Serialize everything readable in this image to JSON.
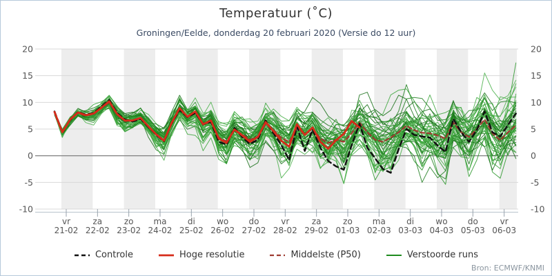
{
  "header": {
    "title": "Temperatuur (˚C)",
    "subtitle": "Groningen/Eelde, donderdag 20 februari 2020 (Versie do 12 uur)"
  },
  "footer": {
    "source": "Bron: ECMWF/KNMI"
  },
  "legend": [
    {
      "label": "Controle",
      "color": "#111111",
      "dash": "6 4",
      "width": 2.6
    },
    {
      "label": "Hoge resolutie",
      "color": "#d62b1a",
      "dash": "",
      "width": 2.8
    },
    {
      "label": "Middelste (P50)",
      "color": "#9e3a30",
      "dash": "6 4",
      "width": 2.2
    },
    {
      "label": "Verstoorde runs",
      "color": "#1e8a1e",
      "dash": "",
      "width": 2.0
    }
  ],
  "colors": {
    "band": "#ededed",
    "grid": "#d8d8d8",
    "zero_line": "#888888",
    "axis_line": "#b8c2cc",
    "tick": "#98a2ac",
    "axis_text": "#555555",
    "border": "#b6c8da"
  },
  "chart_data": {
    "type": "line",
    "title": "Temperatuur (˚C)",
    "subtitle": "Groningen/Eelde, donderdag 20 februari 2020 (Versie do 12 uur)",
    "ylabel": "",
    "xlabel": "",
    "ylim": [
      -10,
      20
    ],
    "yticks": [
      20,
      15,
      10,
      5,
      0,
      -5,
      -10
    ],
    "grid": "horizontal",
    "legend_position": "bottom",
    "x_days": [
      {
        "day": "vr",
        "date": "21-02"
      },
      {
        "day": "za",
        "date": "22-02"
      },
      {
        "day": "zo",
        "date": "23-02"
      },
      {
        "day": "ma",
        "date": "24-02"
      },
      {
        "day": "di",
        "date": "25-02"
      },
      {
        "day": "wo",
        "date": "26-02"
      },
      {
        "day": "do",
        "date": "27-02"
      },
      {
        "day": "vr",
        "date": "28-02"
      },
      {
        "day": "za",
        "date": "29-02"
      },
      {
        "day": "zo",
        "date": "01-03"
      },
      {
        "day": "ma",
        "date": "02-03"
      },
      {
        "day": "di",
        "date": "03-03"
      },
      {
        "day": "wo",
        "date": "04-03"
      },
      {
        "day": "do",
        "date": "05-03"
      },
      {
        "day": "vr",
        "date": "06-03"
      }
    ],
    "time_step_days": 0.25,
    "series": [
      {
        "name": "Controle",
        "color": "#111111",
        "dash": "7 5",
        "width": 2.5,
        "values": [
          8.3,
          4.5,
          6.7,
          8.2,
          7.7,
          8.0,
          9.2,
          10.4,
          8.0,
          6.8,
          6.4,
          6.9,
          5.4,
          3.9,
          2.7,
          6.1,
          8.6,
          7.2,
          8.0,
          5.9,
          6.3,
          2.6,
          2.1,
          5.2,
          3.5,
          2.2,
          3.0,
          6.6,
          4.2,
          2.0,
          -0.8,
          5.5,
          0.9,
          4.9,
          1.5,
          -1.0,
          -2.0,
          -2.6,
          2.0,
          6.0,
          1.5,
          -0.5,
          -2.5,
          -3.2,
          1.2,
          5.0,
          3.9,
          3.6,
          3.4,
          1.9,
          0.7,
          6.9,
          4.4,
          2.6,
          4.8,
          8.3,
          4.4,
          3.6,
          5.8,
          7.9
        ]
      },
      {
        "name": "Hoge resolutie",
        "color": "#d62b1a",
        "dash": "",
        "width": 2.8,
        "values": [
          8.2,
          4.4,
          6.8,
          8.1,
          7.6,
          7.9,
          9.0,
          10.2,
          7.8,
          6.6,
          6.6,
          7.1,
          5.5,
          4.0,
          2.8,
          6.2,
          8.9,
          7.3,
          8.3,
          5.9,
          6.6,
          3.2,
          2.4,
          4.9,
          3.8,
          2.6,
          3.5,
          6.3,
          4.6,
          2.8,
          1.7,
          5.9,
          3.9,
          5.3,
          2.6,
          1.3,
          2.9,
          4.1,
          6.5,
          5.3
        ]
      },
      {
        "name": "Middelste (P50)",
        "color": "#9e3a30",
        "dash": "6 4",
        "width": 2.2,
        "values": [
          8.1,
          4.5,
          6.7,
          8.0,
          7.5,
          7.8,
          8.9,
          10.0,
          7.7,
          6.5,
          6.5,
          7.0,
          5.4,
          3.9,
          2.9,
          6.0,
          8.7,
          7.2,
          8.1,
          5.8,
          6.4,
          3.4,
          2.7,
          4.8,
          4.0,
          3.0,
          3.6,
          6.0,
          4.8,
          3.4,
          2.6,
          5.2,
          4.0,
          5.0,
          3.2,
          2.4,
          3.0,
          2.6,
          4.2,
          6.2,
          4.4,
          3.0,
          2.6,
          3.4,
          4.4,
          5.6,
          4.8,
          4.3,
          4.2,
          3.8,
          3.2,
          6.2,
          4.4,
          3.5,
          5.0,
          6.8,
          4.2,
          2.9,
          4.4,
          5.7
        ]
      }
    ],
    "ensemble": {
      "name": "Verstoorde runs",
      "count": 50,
      "seed": 20200220,
      "palette": [
        "#2c962c",
        "#1e7e1e",
        "#3ca63c",
        "#177017",
        "#4ab04a"
      ],
      "sigma_start": 0.22,
      "sigma_end": 2.77,
      "night_amplification": 1.5,
      "value_clamp": [
        -9,
        17.5
      ],
      "spike": {
        "member": 0,
        "points": [
          [
            57,
            2.5
          ],
          [
            58,
            9.0
          ],
          [
            59,
            17.4
          ]
        ]
      }
    }
  }
}
